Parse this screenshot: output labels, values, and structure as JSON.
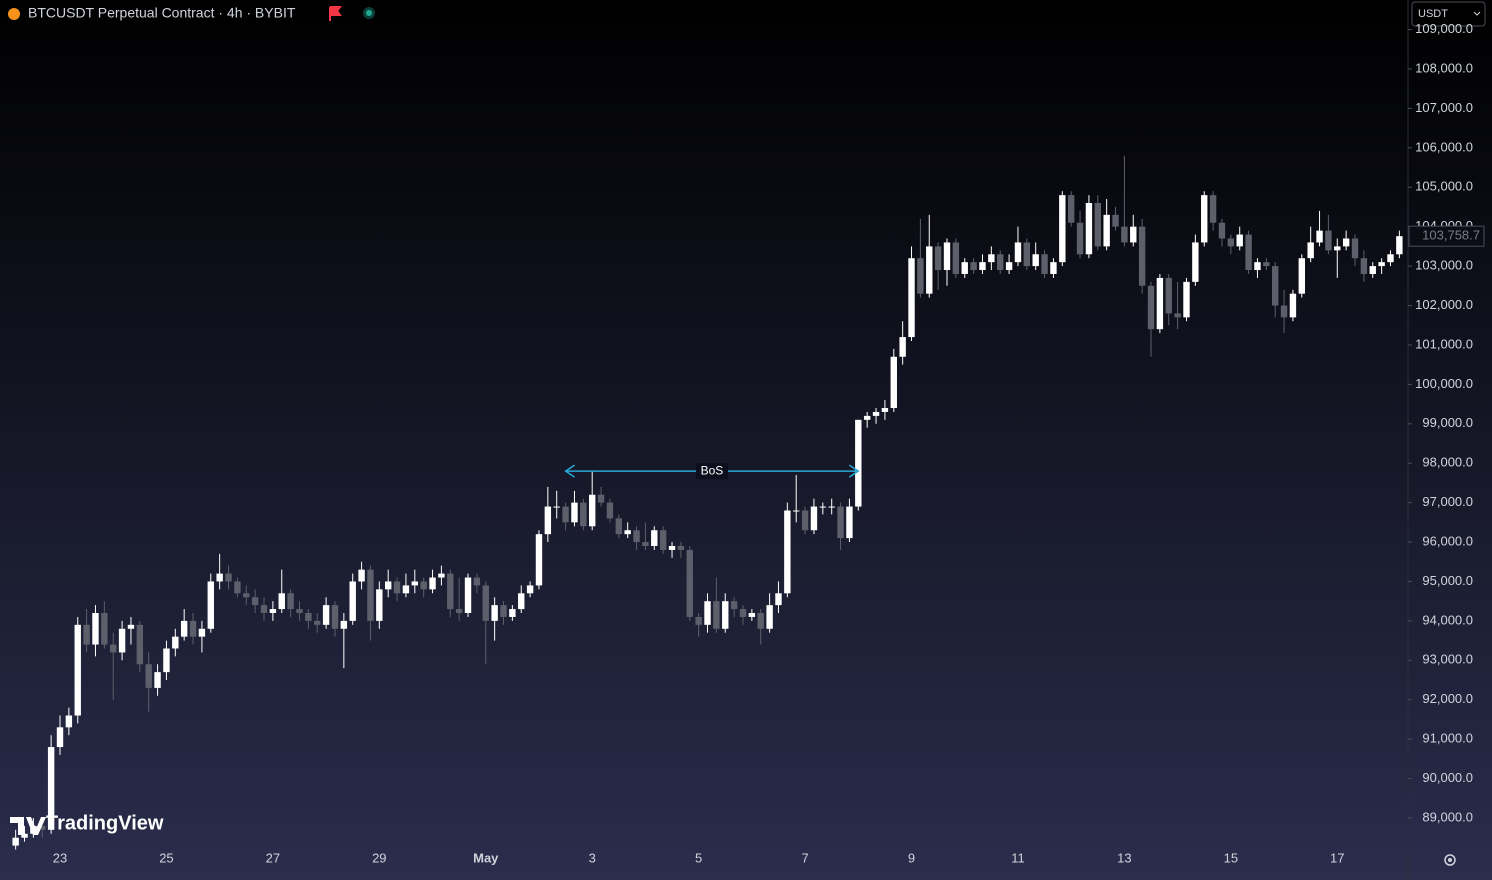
{
  "chart_data": {
    "type": "candlestick",
    "title": "BTCUSDT Perpetual Contract · 4h · BYBIT",
    "currency": "USDT",
    "watermark": "TradingView",
    "up_color": "#ffffff",
    "down_color": "#5d606b",
    "annotation_color": "#2aa8d6",
    "ylim": [
      88315,
      109750
    ],
    "yticks": [
      {
        "value": 89000,
        "label": "89,000.0"
      },
      {
        "value": 90000,
        "label": "90,000.0"
      },
      {
        "value": 91000,
        "label": "91,000.0"
      },
      {
        "value": 92000,
        "label": "92,000.0"
      },
      {
        "value": 93000,
        "label": "93,000.0"
      },
      {
        "value": 94000,
        "label": "94,000.0"
      },
      {
        "value": 95000,
        "label": "95,000.0"
      },
      {
        "value": 96000,
        "label": "96,000.0"
      },
      {
        "value": 97000,
        "label": "97,000.0"
      },
      {
        "value": 98000,
        "label": "98,000.0"
      },
      {
        "value": 99000,
        "label": "99,000.0"
      },
      {
        "value": 100000,
        "label": "100,000.0"
      },
      {
        "value": 101000,
        "label": "101,000.0"
      },
      {
        "value": 102000,
        "label": "102,000.0"
      },
      {
        "value": 103000,
        "label": "103,000.0"
      },
      {
        "value": 104000,
        "label": "104,000.0"
      },
      {
        "value": 105000,
        "label": "105,000.0"
      },
      {
        "value": 106000,
        "label": "106,000.0"
      },
      {
        "value": 107000,
        "label": "107,000.0"
      },
      {
        "value": 108000,
        "label": "108,000.0"
      },
      {
        "value": 109000,
        "label": "109,000.0"
      }
    ],
    "last_price": {
      "value": 103758.7,
      "label": "103,758.7"
    },
    "annotation": {
      "text": "BoS",
      "value": 97800,
      "from": 62,
      "to": 95
    },
    "categories": [
      null,
      null,
      null,
      null,
      null,
      "23",
      null,
      null,
      null,
      null,
      null,
      null,
      null,
      null,
      null,
      null,
      null,
      "25",
      null,
      null,
      null,
      null,
      null,
      null,
      null,
      null,
      null,
      null,
      null,
      "27",
      null,
      null,
      null,
      null,
      null,
      null,
      null,
      null,
      null,
      null,
      null,
      "29",
      null,
      null,
      null,
      null,
      null,
      null,
      null,
      null,
      null,
      null,
      null,
      "May",
      null,
      null,
      null,
      null,
      null,
      null,
      null,
      null,
      null,
      null,
      null,
      "3",
      null,
      null,
      null,
      null,
      null,
      null,
      null,
      null,
      null,
      null,
      null,
      "5",
      null,
      null,
      null,
      null,
      null,
      null,
      null,
      null,
      null,
      null,
      null,
      "7",
      null,
      null,
      null,
      null,
      null,
      null,
      null,
      null,
      null,
      null,
      null,
      "9",
      null,
      null,
      null,
      null,
      null,
      null,
      null,
      null,
      null,
      null,
      null,
      "11",
      null,
      null,
      null,
      null,
      null,
      null,
      null,
      null,
      null,
      null,
      null,
      "13",
      null,
      null,
      null,
      null,
      null,
      null,
      null,
      null,
      null,
      null,
      null,
      "15",
      null,
      null,
      null,
      null,
      null,
      null,
      null,
      null,
      null,
      null,
      null,
      "17",
      null,
      null,
      null,
      null,
      null,
      null,
      null
    ],
    "candles": [
      [
        88300,
        88700,
        88200,
        88500
      ],
      [
        88500,
        88800,
        88400,
        88600
      ],
      [
        88600,
        89000,
        88500,
        88800
      ],
      [
        88800,
        88900,
        88500,
        88700
      ],
      [
        88700,
        91100,
        88600,
        90800
      ],
      [
        90800,
        91600,
        90600,
        91300
      ],
      [
        91300,
        91800,
        91100,
        91600
      ],
      [
        91600,
        94100,
        91400,
        93900
      ],
      [
        93900,
        94300,
        93200,
        93400
      ],
      [
        93400,
        94400,
        93100,
        94200
      ],
      [
        94200,
        94500,
        93300,
        93400
      ],
      [
        93400,
        93700,
        92000,
        93200
      ],
      [
        93200,
        94000,
        93000,
        93800
      ],
      [
        93800,
        94100,
        93400,
        93900
      ],
      [
        93900,
        94000,
        92700,
        92900
      ],
      [
        92900,
        93200,
        91700,
        92300
      ],
      [
        92300,
        92900,
        92100,
        92700
      ],
      [
        92700,
        93500,
        92500,
        93300
      ],
      [
        93300,
        93800,
        93100,
        93600
      ],
      [
        93600,
        94300,
        93500,
        94000
      ],
      [
        94000,
        94200,
        93400,
        93600
      ],
      [
        93600,
        94000,
        93200,
        93800
      ],
      [
        93800,
        95200,
        93700,
        95000
      ],
      [
        95000,
        95700,
        94800,
        95200
      ],
      [
        95200,
        95400,
        94800,
        95000
      ],
      [
        95000,
        95100,
        94600,
        94700
      ],
      [
        94700,
        94900,
        94400,
        94600
      ],
      [
        94600,
        94800,
        94200,
        94400
      ],
      [
        94400,
        94600,
        94000,
        94200
      ],
      [
        94200,
        94500,
        94000,
        94300
      ],
      [
        94300,
        95300,
        94200,
        94700
      ],
      [
        94700,
        94800,
        94100,
        94300
      ],
      [
        94300,
        94500,
        94000,
        94200
      ],
      [
        94200,
        94300,
        93800,
        94000
      ],
      [
        94000,
        94200,
        93700,
        93900
      ],
      [
        93900,
        94600,
        93800,
        94400
      ],
      [
        94400,
        94500,
        93600,
        93800
      ],
      [
        93800,
        94200,
        92800,
        94000
      ],
      [
        94000,
        95200,
        93900,
        95000
      ],
      [
        95000,
        95500,
        94800,
        95300
      ],
      [
        95300,
        95400,
        93500,
        94000
      ],
      [
        94000,
        95000,
        93800,
        94800
      ],
      [
        94800,
        95300,
        94600,
        95000
      ],
      [
        95000,
        95100,
        94500,
        94700
      ],
      [
        94700,
        95200,
        94600,
        94900
      ],
      [
        94900,
        95300,
        94700,
        95000
      ],
      [
        95000,
        95100,
        94600,
        94800
      ],
      [
        94800,
        95300,
        94700,
        95100
      ],
      [
        95100,
        95400,
        94900,
        95200
      ],
      [
        95200,
        95300,
        94100,
        94300
      ],
      [
        94300,
        95100,
        94000,
        94200
      ],
      [
        94200,
        95200,
        94100,
        95100
      ],
      [
        95100,
        95200,
        94700,
        94900
      ],
      [
        94900,
        95000,
        92900,
        94000
      ],
      [
        94000,
        94600,
        93500,
        94400
      ],
      [
        94400,
        94500,
        93900,
        94100
      ],
      [
        94100,
        94400,
        94000,
        94300
      ],
      [
        94300,
        94900,
        94200,
        94700
      ],
      [
        94700,
        95000,
        94600,
        94900
      ],
      [
        94900,
        96300,
        94800,
        96200
      ],
      [
        96200,
        97400,
        96000,
        96900
      ],
      [
        96900,
        97300,
        96600,
        96900
      ],
      [
        96900,
        97000,
        96300,
        96500
      ],
      [
        96500,
        97300,
        96400,
        97000
      ],
      [
        97000,
        97100,
        96300,
        96400
      ],
      [
        96400,
        97800,
        96300,
        97200
      ],
      [
        97200,
        97400,
        96900,
        97000
      ],
      [
        97000,
        97100,
        96500,
        96600
      ],
      [
        96600,
        96700,
        96100,
        96200
      ],
      [
        96200,
        96500,
        96100,
        96300
      ],
      [
        96300,
        96400,
        95800,
        96000
      ],
      [
        96000,
        96500,
        95800,
        95900
      ],
      [
        95900,
        96400,
        95800,
        96300
      ],
      [
        96300,
        96400,
        95700,
        95800
      ],
      [
        95800,
        96000,
        95600,
        95900
      ],
      [
        95900,
        96000,
        95600,
        95800
      ],
      [
        95800,
        95900,
        94000,
        94100
      ],
      [
        94100,
        94200,
        93600,
        93900
      ],
      [
        93900,
        94700,
        93700,
        94500
      ],
      [
        94500,
        95100,
        93700,
        93800
      ],
      [
        93800,
        94700,
        93700,
        94500
      ],
      [
        94500,
        94600,
        94100,
        94300
      ],
      [
        94300,
        94400,
        93900,
        94100
      ],
      [
        94100,
        94300,
        94000,
        94200
      ],
      [
        94200,
        94300,
        93400,
        93800
      ],
      [
        93800,
        94700,
        93700,
        94400
      ],
      [
        94400,
        95000,
        94200,
        94700
      ],
      [
        94700,
        97000,
        94600,
        96800
      ],
      [
        96800,
        97700,
        96500,
        96800
      ],
      [
        96800,
        96900,
        96200,
        96300
      ],
      [
        96300,
        97100,
        96200,
        96900
      ],
      [
        96900,
        97000,
        96700,
        96900
      ],
      [
        96900,
        97100,
        96700,
        96900
      ],
      [
        96900,
        97000,
        95800,
        96100
      ],
      [
        96100,
        97100,
        96000,
        96900
      ],
      [
        96900,
        99100,
        96800,
        99100
      ],
      [
        99100,
        99300,
        98900,
        99200
      ],
      [
        99200,
        99400,
        99000,
        99300
      ],
      [
        99300,
        99600,
        99100,
        99400
      ],
      [
        99400,
        100900,
        99300,
        100700
      ],
      [
        100700,
        101600,
        100500,
        101200
      ],
      [
        101200,
        103500,
        101100,
        103200
      ],
      [
        103200,
        104200,
        102200,
        102300
      ],
      [
        102300,
        104300,
        102200,
        103500
      ],
      [
        103500,
        103600,
        102400,
        102900
      ],
      [
        102900,
        103700,
        102500,
        103600
      ],
      [
        103600,
        103700,
        102700,
        102800
      ],
      [
        102800,
        103200,
        102700,
        103100
      ],
      [
        103100,
        103200,
        102800,
        102900
      ],
      [
        102900,
        103300,
        102800,
        103100
      ],
      [
        103100,
        103500,
        102900,
        103300
      ],
      [
        103300,
        103400,
        102800,
        102900
      ],
      [
        102900,
        103300,
        102800,
        103100
      ],
      [
        103100,
        104000,
        103000,
        103600
      ],
      [
        103600,
        103700,
        102900,
        103000
      ],
      [
        103000,
        103600,
        102900,
        103300
      ],
      [
        103300,
        103400,
        102700,
        102800
      ],
      [
        102800,
        103200,
        102700,
        103100
      ],
      [
        103100,
        104900,
        103000,
        104800
      ],
      [
        104800,
        104900,
        104000,
        104100
      ],
      [
        104100,
        104400,
        103200,
        103300
      ],
      [
        103300,
        104800,
        103200,
        104600
      ],
      [
        104600,
        104800,
        103400,
        103500
      ],
      [
        103500,
        104700,
        103400,
        104300
      ],
      [
        104300,
        104500,
        103900,
        104000
      ],
      [
        104000,
        105800,
        103500,
        103600
      ],
      [
        103600,
        104300,
        103500,
        104000
      ],
      [
        104000,
        104200,
        102300,
        102500
      ],
      [
        102500,
        102600,
        100700,
        101400
      ],
      [
        101400,
        102800,
        101300,
        102700
      ],
      [
        102700,
        102800,
        101500,
        101800
      ],
      [
        101800,
        102600,
        101400,
        101700
      ],
      [
        101700,
        102700,
        101600,
        102600
      ],
      [
        102600,
        103800,
        102500,
        103600
      ],
      [
        103600,
        104900,
        103500,
        104800
      ],
      [
        104800,
        104900,
        103900,
        104100
      ],
      [
        104100,
        104200,
        103500,
        103700
      ],
      [
        103700,
        103800,
        103300,
        103500
      ],
      [
        103500,
        104000,
        103400,
        103800
      ],
      [
        103800,
        103900,
        102800,
        102900
      ],
      [
        102900,
        103200,
        102700,
        103100
      ],
      [
        103100,
        103200,
        102900,
        103000
      ],
      [
        103000,
        103100,
        101700,
        102000
      ],
      [
        102000,
        102400,
        101300,
        101700
      ],
      [
        101700,
        102400,
        101600,
        102300
      ],
      [
        102300,
        103300,
        102200,
        103200
      ],
      [
        103200,
        104000,
        103100,
        103600
      ],
      [
        103600,
        104400,
        103500,
        103900
      ],
      [
        103900,
        104300,
        103300,
        103400
      ],
      [
        103400,
        103700,
        102700,
        103500
      ],
      [
        103500,
        103900,
        103400,
        103700
      ],
      [
        103700,
        103800,
        103000,
        103200
      ],
      [
        103200,
        103400,
        102600,
        102800
      ],
      [
        102800,
        103100,
        102700,
        103000
      ],
      [
        103000,
        103200,
        102800,
        103100
      ],
      [
        103100,
        103400,
        103000,
        103300
      ],
      [
        103300,
        103900,
        103200,
        103758.7
      ]
    ]
  }
}
